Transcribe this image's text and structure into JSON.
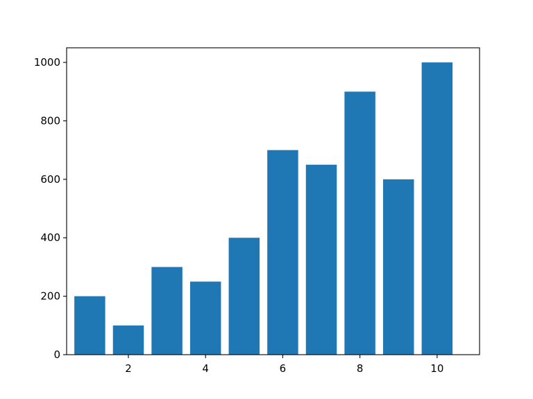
{
  "chart_data": {
    "type": "bar",
    "categories": [
      1,
      2,
      3,
      4,
      5,
      6,
      7,
      8,
      9,
      10
    ],
    "values": [
      200,
      100,
      300,
      250,
      400,
      700,
      650,
      900,
      600,
      1000
    ],
    "title": "",
    "xlabel": "",
    "ylabel": "",
    "xlim": [
      0.4,
      11.1
    ],
    "ylim": [
      0,
      1050
    ],
    "xticks": [
      2,
      4,
      6,
      8,
      10
    ],
    "xtick_labels": [
      "2",
      "4",
      "6",
      "8",
      "10"
    ],
    "yticks": [
      0,
      200,
      400,
      600,
      800,
      1000
    ],
    "ytick_labels": [
      "0",
      "200",
      "400",
      "600",
      "800",
      "1000"
    ],
    "bar_width": 0.8,
    "bar_color": "#1f77b4",
    "grid": false,
    "legend": "none"
  }
}
